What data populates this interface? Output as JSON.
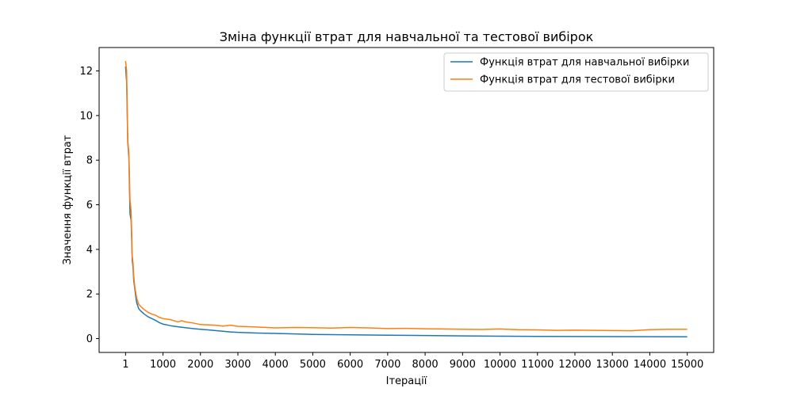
{
  "chart_data": {
    "type": "line",
    "title": "Зміна функції втрат для навчальної та тестової вибірок",
    "xlabel": "Ітерації",
    "ylabel": "Значення функції втрат",
    "xlim": [
      1,
      15000
    ],
    "ylim": [
      0,
      12.5
    ],
    "x_ticks": [
      1,
      1000,
      2000,
      3000,
      4000,
      5000,
      6000,
      7000,
      8000,
      9000,
      10000,
      11000,
      12000,
      13000,
      14000,
      15000
    ],
    "y_ticks": [
      0,
      2,
      4,
      6,
      8,
      10,
      12
    ],
    "grid": false,
    "legend_position": "top-right",
    "series": [
      {
        "name": "Функція втрат для навчальної вибірки",
        "color": "#1f77b4",
        "x": [
          1,
          30,
          60,
          90,
          120,
          150,
          180,
          200,
          220,
          250,
          280,
          300,
          350,
          400,
          500,
          600,
          700,
          800,
          900,
          1000,
          1200,
          1400,
          1600,
          1800,
          2000,
          2200,
          2400,
          2600,
          2800,
          3000,
          3500,
          4000,
          5000,
          6000,
          7000,
          8000,
          9000,
          10000,
          11000,
          12000,
          13000,
          14000,
          15000
        ],
        "y": [
          12.2,
          11.5,
          8.8,
          8.1,
          5.6,
          5.3,
          3.5,
          3.2,
          2.6,
          2.2,
          1.8,
          1.6,
          1.35,
          1.25,
          1.1,
          0.98,
          0.9,
          0.82,
          0.72,
          0.65,
          0.58,
          0.53,
          0.49,
          0.45,
          0.42,
          0.39,
          0.36,
          0.33,
          0.3,
          0.28,
          0.25,
          0.23,
          0.19,
          0.17,
          0.15,
          0.14,
          0.12,
          0.11,
          0.1,
          0.095,
          0.09,
          0.085,
          0.08
        ]
      },
      {
        "name": "Функція втрат для тестової вибірки",
        "color": "#ff7f0e",
        "x": [
          1,
          30,
          60,
          90,
          120,
          150,
          180,
          200,
          220,
          250,
          280,
          300,
          350,
          400,
          500,
          600,
          700,
          800,
          900,
          1000,
          1200,
          1400,
          1500,
          1600,
          1800,
          2000,
          2200,
          2400,
          2600,
          2800,
          3000,
          3500,
          4000,
          4500,
          5000,
          5500,
          6000,
          6500,
          7000,
          7500,
          8000,
          8500,
          9000,
          9500,
          10000,
          10500,
          11000,
          11500,
          12000,
          12500,
          13000,
          13500,
          14000,
          14500,
          15000
        ],
        "y": [
          12.45,
          12.0,
          8.9,
          8.3,
          6.2,
          5.7,
          3.7,
          3.4,
          2.8,
          2.3,
          2.0,
          1.8,
          1.55,
          1.45,
          1.3,
          1.18,
          1.1,
          1.05,
          0.95,
          0.9,
          0.85,
          0.75,
          0.8,
          0.75,
          0.7,
          0.63,
          0.62,
          0.6,
          0.56,
          0.6,
          0.55,
          0.52,
          0.48,
          0.5,
          0.49,
          0.47,
          0.5,
          0.48,
          0.45,
          0.46,
          0.44,
          0.43,
          0.42,
          0.41,
          0.43,
          0.4,
          0.39,
          0.37,
          0.38,
          0.37,
          0.36,
          0.35,
          0.4,
          0.42,
          0.42
        ]
      }
    ]
  }
}
